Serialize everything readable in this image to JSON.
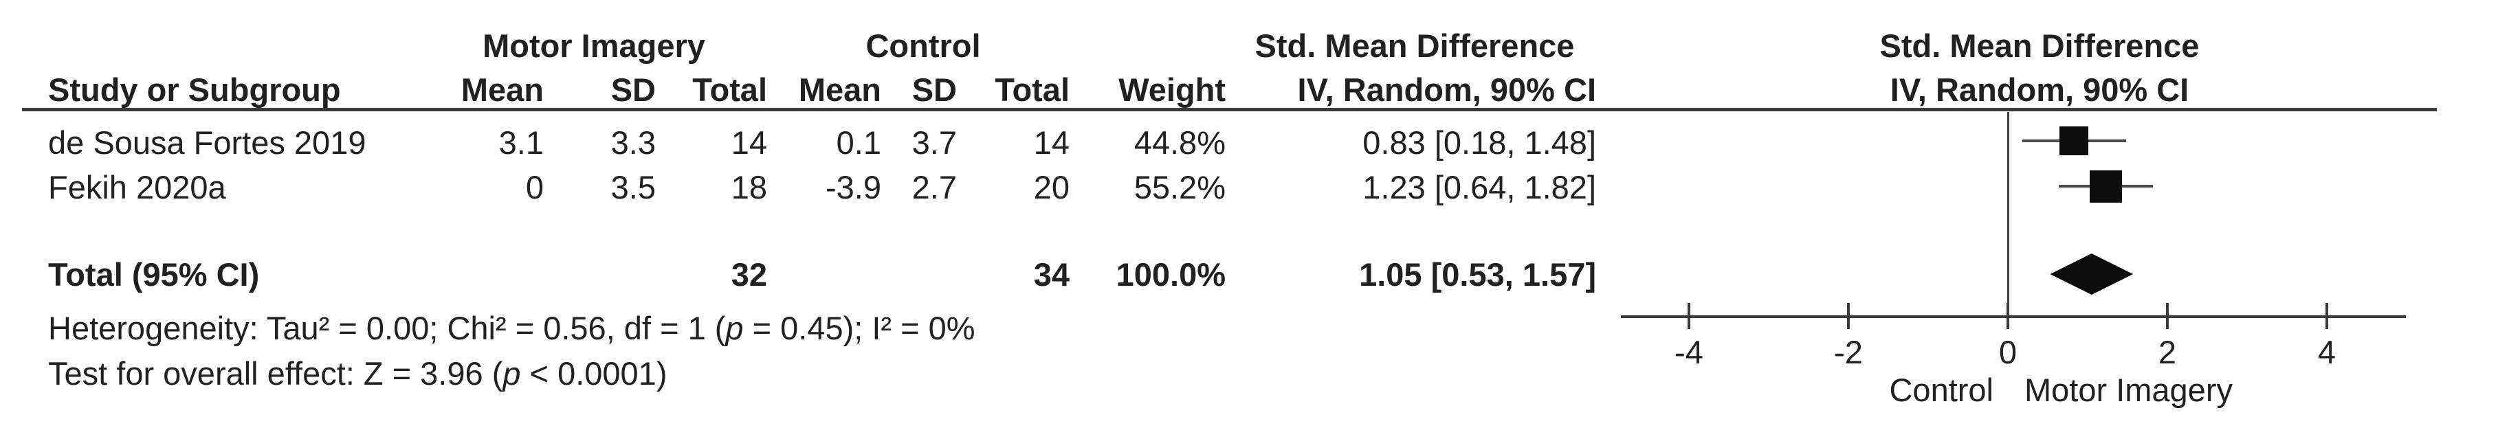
{
  "table": {
    "group_headers": {
      "experimental": "Motor Imagery",
      "control": "Control",
      "smd_text_col": "Std. Mean Difference",
      "smd_plot_col": "Std. Mean Difference"
    },
    "column_headers": {
      "study": "Study or Subgroup",
      "mi_mean": "Mean",
      "mi_sd": "SD",
      "mi_total": "Total",
      "c_mean": "Mean",
      "c_sd": "SD",
      "c_total": "Total",
      "weight": "Weight",
      "iv_text_col": "IV, Random, 90% CI",
      "iv_plot_col": "IV, Random, 90% CI"
    },
    "rows": [
      {
        "study": "de Sousa Fortes 2019",
        "mi_mean": "3.1",
        "mi_sd": "3.3",
        "mi_total": "14",
        "c_mean": "0.1",
        "c_sd": "3.7",
        "c_total": "14",
        "weight": "44.8%",
        "ci": "0.83 [0.18, 1.48]"
      },
      {
        "study": "Fekih 2020a",
        "mi_mean": "0",
        "mi_sd": "3.5",
        "mi_total": "18",
        "c_mean": "-3.9",
        "c_sd": "2.7",
        "c_total": "20",
        "weight": "55.2%",
        "ci": "1.23 [0.64, 1.82]"
      }
    ],
    "total_row": {
      "label": "Total (95% CI)",
      "mi_total": "32",
      "c_total": "34",
      "weight": "100.0%",
      "ci": "1.05 [0.53, 1.57]"
    },
    "footnotes": {
      "heterogeneity": [
        {
          "t": "Heterogeneity: Tau² = 0.00; Chi² = 0.56, df = 1 ("
        },
        {
          "t": "p",
          "i": true
        },
        {
          "t": " = 0.45); I² = 0%"
        }
      ],
      "overall_effect": [
        {
          "t": "Test for overall effect: Z = 3.96 ("
        },
        {
          "t": "p",
          "i": true
        },
        {
          "t": " < 0.0001)"
        }
      ]
    }
  },
  "chart_data": {
    "type": "forest",
    "effect_measure": "Std. Mean Difference",
    "model": "IV, Random, 90% CI",
    "studies": [
      {
        "name": "de Sousa Fortes 2019",
        "mi": {
          "mean": 3.1,
          "sd": 3.3,
          "n": 14
        },
        "control": {
          "mean": 0.1,
          "sd": 3.7,
          "n": 14
        },
        "weight_pct": 44.8,
        "smd": 0.83,
        "ci90": [
          0.18,
          1.48
        ]
      },
      {
        "name": "Fekih 2020a",
        "mi": {
          "mean": 0,
          "sd": 3.5,
          "n": 18
        },
        "control": {
          "mean": -3.9,
          "sd": 2.7,
          "n": 20
        },
        "weight_pct": 55.2,
        "smd": 1.23,
        "ci90": [
          0.64,
          1.82
        ]
      }
    ],
    "total": {
      "label": "Total (95% CI)",
      "mi_n": 32,
      "control_n": 34,
      "weight_pct": 100.0,
      "smd": 1.05,
      "ci": [
        0.53,
        1.57
      ]
    },
    "axis": {
      "ticks": [
        -4,
        -2,
        0,
        2,
        4
      ],
      "min": -4.85,
      "max": 5.0,
      "left_label": "Control",
      "right_label": "Motor Imagery"
    },
    "heterogeneity": {
      "tau2": 0.0,
      "chi2": 0.56,
      "df": 1,
      "p": 0.45,
      "i2_pct": 0
    },
    "overall_effect": {
      "z": 3.96,
      "p_text": "< 0.0001"
    }
  }
}
